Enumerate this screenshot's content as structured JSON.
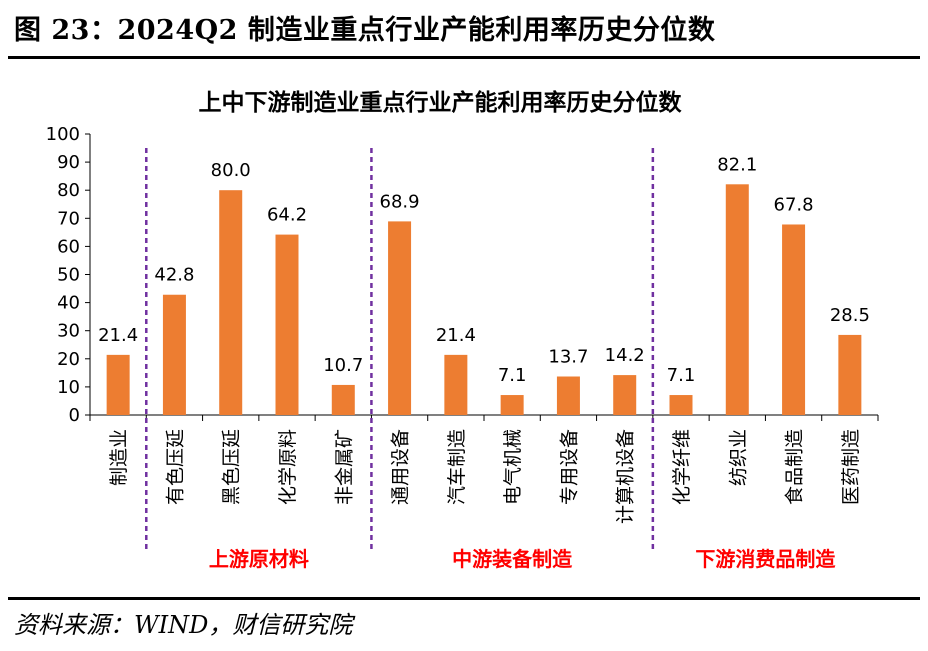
{
  "figure": {
    "title": "图 23：2024Q2 制造业重点行业产能利用率历史分位数",
    "source": "资料来源：WIND，财信研究院"
  },
  "colors": {
    "bar": "#ED7D31",
    "divider": "#7030A0",
    "group_label": "#FF0000"
  },
  "chart_data": {
    "type": "bar",
    "title": "上中下游制造业重点行业产能利用率历史分位数",
    "xlabel": "",
    "ylabel": "",
    "ylim": [
      0,
      100
    ],
    "yticks": [
      0,
      10,
      20,
      30,
      40,
      50,
      60,
      70,
      80,
      90,
      100
    ],
    "categories": [
      "制造业",
      "有色压延",
      "黑色压延",
      "化学原料",
      "非金属矿",
      "通用设备",
      "汽车制造",
      "电气机械",
      "专用设备",
      "计算机设备",
      "化学纤维",
      "纺织业",
      "食品制造",
      "医药制造"
    ],
    "values": [
      21.4,
      42.8,
      80.0,
      64.2,
      10.7,
      68.9,
      21.4,
      7.1,
      13.7,
      14.2,
      7.1,
      82.1,
      67.8,
      28.5
    ],
    "value_labels": [
      "21.4",
      "42.8",
      "80.0",
      "64.2",
      "10.7",
      "68.9",
      "21.4",
      "7.1",
      "13.7",
      "14.2",
      "7.1",
      "82.1",
      "67.8",
      "28.5"
    ],
    "groups": [
      {
        "label": "上游原材料",
        "start": 1,
        "end": 4
      },
      {
        "label": "中游装备制造",
        "start": 5,
        "end": 9
      },
      {
        "label": "下游消费品制造",
        "start": 10,
        "end": 13
      }
    ],
    "dividers_after_index": [
      0,
      4,
      9
    ],
    "legend": "none",
    "grid": false
  }
}
